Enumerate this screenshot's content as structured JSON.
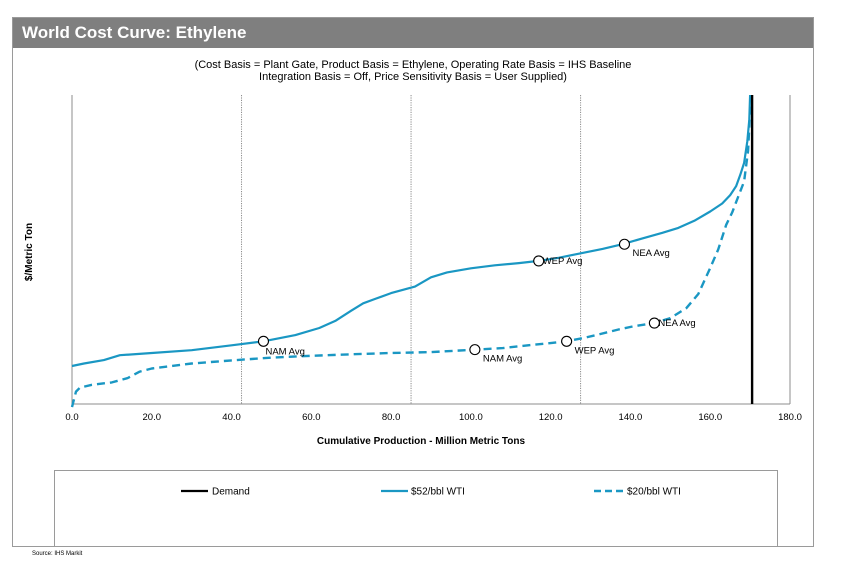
{
  "header": {
    "title": "World Cost Curve:  Ethylene",
    "subtitle_line1": "(Cost Basis = Plant Gate, Product Basis = Ethylene, Operating Rate Basis = IHS Baseline",
    "subtitle_line2": "Integration Basis = Off, Price Sensitivity Basis  = User Supplied)"
  },
  "source": "Source: IHS Markit",
  "colors": {
    "title_bar": "#7f7f7f",
    "series_52": "#1a97c3",
    "series_20": "#1a97c3",
    "demand": "#000000"
  },
  "chart_data": {
    "type": "line",
    "title": "World Cost Curve:  Ethylene",
    "xlabel": "Cumulative Production - Million Metric Tons",
    "ylabel": "$/Metric Ton",
    "xlim": [
      0,
      180
    ],
    "x_ticks": [
      "0.0",
      "20.0",
      "40.0",
      "60.0",
      "80.0",
      "100.0",
      "120.0",
      "140.0",
      "160.0",
      "180.0"
    ],
    "y_ticks_shown": false,
    "y_scale_note": "y values in relative units (0 = plot bottom, 100 = plot top); no y tick labels printed",
    "ylim": [
      0,
      100
    ],
    "grid": {
      "vertical_dotted_at": [
        42.5,
        85,
        127.5
      ],
      "vertical_solid_at": [
        0,
        180
      ]
    },
    "legend_position": "bottom",
    "demand_x": 170.5,
    "series": [
      {
        "name": "$52/bbl WTI",
        "style": "solid",
        "points": [
          [
            0,
            12.3
          ],
          [
            3,
            13.1
          ],
          [
            8,
            14.2
          ],
          [
            12,
            15.8
          ],
          [
            20,
            16.5
          ],
          [
            30,
            17.4
          ],
          [
            40,
            19.0
          ],
          [
            48,
            20.3
          ],
          [
            56,
            22.3
          ],
          [
            62,
            24.6
          ],
          [
            66,
            26.9
          ],
          [
            70,
            30.2
          ],
          [
            73,
            32.6
          ],
          [
            76,
            34.0
          ],
          [
            80,
            35.9
          ],
          [
            86,
            38.0
          ],
          [
            90,
            41.0
          ],
          [
            94,
            42.6
          ],
          [
            100,
            43.9
          ],
          [
            106,
            44.9
          ],
          [
            112,
            45.6
          ],
          [
            117,
            46.3
          ],
          [
            122,
            47.3
          ],
          [
            128,
            48.9
          ],
          [
            133,
            50.2
          ],
          [
            138,
            51.7
          ],
          [
            143,
            53.6
          ],
          [
            148,
            55.4
          ],
          [
            152,
            57.0
          ],
          [
            156,
            59.3
          ],
          [
            160,
            62.3
          ],
          [
            163,
            64.9
          ],
          [
            165,
            67.6
          ],
          [
            166.5,
            70.5
          ],
          [
            167.5,
            74.0
          ],
          [
            168.5,
            78.0
          ],
          [
            169.3,
            85.0
          ],
          [
            169.8,
            92.0
          ],
          [
            170.0,
            100.0
          ]
        ],
        "markers": [
          {
            "x": 48,
            "y": 20.3,
            "label": "NAM Avg",
            "label_pos": "below"
          },
          {
            "x": 117,
            "y": 46.3,
            "label": "WEP Avg",
            "label_pos": "right"
          },
          {
            "x": 138.5,
            "y": 51.7,
            "label": "NEA Avg",
            "label_pos": "below-right"
          }
        ]
      },
      {
        "name": "$20/bbl WTI",
        "style": "dashed",
        "points": [
          [
            0,
            -1.0
          ],
          [
            1,
            4.0
          ],
          [
            2,
            5.3
          ],
          [
            5,
            6.2
          ],
          [
            10,
            7.0
          ],
          [
            14,
            8.4
          ],
          [
            17,
            10.5
          ],
          [
            20,
            11.5
          ],
          [
            30,
            13.1
          ],
          [
            40,
            14.1
          ],
          [
            50,
            15.0
          ],
          [
            60,
            15.6
          ],
          [
            70,
            16.1
          ],
          [
            80,
            16.5
          ],
          [
            90,
            16.8
          ],
          [
            100,
            17.5
          ],
          [
            108,
            18.1
          ],
          [
            115,
            19.1
          ],
          [
            120,
            19.7
          ],
          [
            124,
            20.3
          ],
          [
            128,
            21.3
          ],
          [
            132,
            22.5
          ],
          [
            137,
            24.1
          ],
          [
            141,
            25.2
          ],
          [
            146,
            26.2
          ],
          [
            150,
            27.8
          ],
          [
            154,
            31.0
          ],
          [
            157,
            35.6
          ],
          [
            160,
            44.0
          ],
          [
            162,
            50.0
          ],
          [
            164,
            58.0
          ],
          [
            165.5,
            62.0
          ],
          [
            167,
            67.0
          ],
          [
            168.5,
            72.0
          ],
          [
            169.5,
            82.0
          ],
          [
            170,
            95.0
          ],
          [
            170.2,
            100.0
          ]
        ],
        "markers": [
          {
            "x": 101,
            "y": 17.6,
            "label": "NAM Avg",
            "label_pos": "below-right"
          },
          {
            "x": 124,
            "y": 20.3,
            "label": "WEP Avg",
            "label_pos": "below-right"
          },
          {
            "x": 146,
            "y": 26.2,
            "label": "NEA Avg",
            "label_pos": "right"
          }
        ]
      }
    ],
    "legend": [
      {
        "name": "Demand",
        "style": "solid-black"
      },
      {
        "name": "$52/bbl WTI",
        "style": "solid"
      },
      {
        "name": "$20/bbl WTI",
        "style": "dashed"
      }
    ]
  }
}
